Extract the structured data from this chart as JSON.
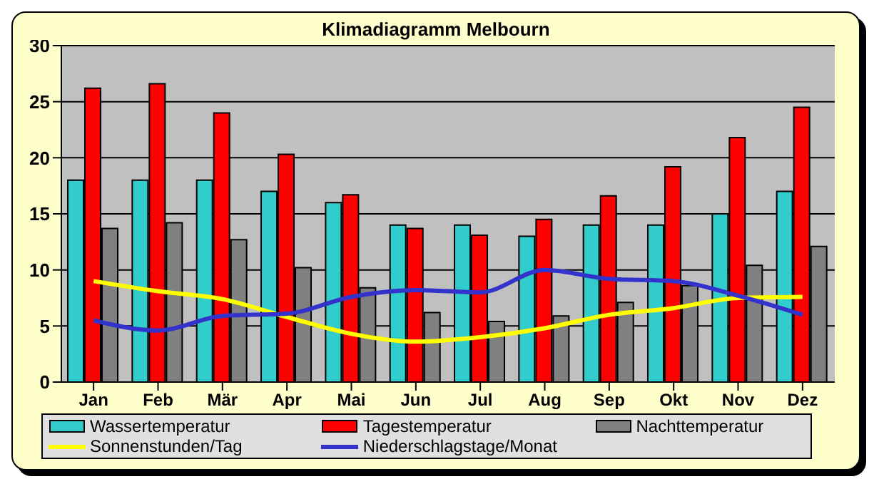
{
  "chart_data": {
    "type": "bar",
    "title": "Klimadiagramm Melbourn",
    "categories": [
      "Jan",
      "Feb",
      "Mär",
      "Apr",
      "Mai",
      "Jun",
      "Jul",
      "Aug",
      "Sep",
      "Okt",
      "Nov",
      "Dez"
    ],
    "series": [
      {
        "name": "Wassertemperatur",
        "color": "#33cccc",
        "values": [
          18,
          18,
          18,
          17,
          16,
          14,
          14,
          13,
          14,
          14,
          15,
          17
        ]
      },
      {
        "name": "Tagestemperatur",
        "color": "#ff0000",
        "values": [
          26.2,
          26.6,
          24,
          20.3,
          16.7,
          13.7,
          13.1,
          14.5,
          16.6,
          19.2,
          21.8,
          24.5
        ]
      },
      {
        "name": "Nachttemperatur",
        "color": "#808080",
        "values": [
          13.7,
          14.2,
          12.7,
          10.2,
          8.4,
          6.2,
          5.4,
          5.9,
          7.1,
          8.6,
          10.4,
          12.1
        ]
      },
      {
        "name": "Sonnenstunden/Tag",
        "type": "line",
        "color": "#ffff00",
        "values": [
          9,
          8.1,
          7.4,
          5.8,
          4.3,
          3.6,
          4,
          4.8,
          6,
          6.6,
          7.5,
          7.6
        ]
      },
      {
        "name": "Niederschlagstage/Monat",
        "type": "line",
        "color": "#3333cc",
        "values": [
          5.5,
          4.6,
          5.9,
          6.1,
          7.6,
          8.2,
          8,
          10,
          9.2,
          9,
          7.7,
          6
        ]
      }
    ],
    "ylim": [
      0,
      30
    ],
    "yticks": [
      0,
      5,
      10,
      15,
      20,
      25,
      30
    ],
    "grid": "y",
    "legend": "bottom",
    "marker": "none"
  }
}
